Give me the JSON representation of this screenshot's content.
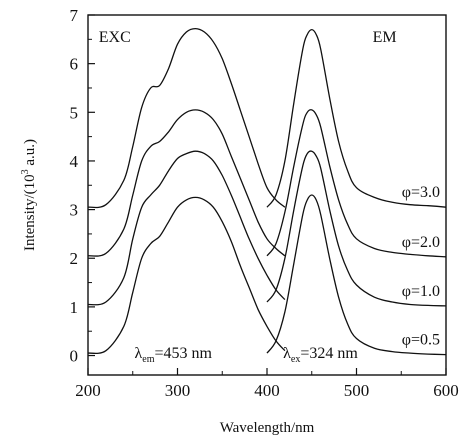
{
  "chart_data": {
    "type": "line",
    "title": "",
    "xlabel": "Wavelength/nm",
    "ylabel": "Intensity/(10",
    "ylabel_sup": "3",
    "ylabel_tail": " a.u.)",
    "xlim": [
      200,
      600
    ],
    "ylim": [
      -0.4,
      7.0
    ],
    "x_ticks": [
      200,
      300,
      400,
      500,
      600
    ],
    "y_ticks": [
      0,
      1,
      2,
      3,
      4,
      5,
      6,
      7
    ],
    "grid": false,
    "panel_labels": {
      "excitation": "EXC",
      "emission": "EM"
    },
    "annotations": {
      "em_symbol": "λ",
      "em_sub": "em",
      "em_value": "=453 nm",
      "ex_symbol": "λ",
      "ex_sub": "ex",
      "ex_value": "=324 nm"
    },
    "series": [
      {
        "name": "φ=3.0",
        "excitation": {
          "x": [
            200,
            220,
            240,
            250,
            260,
            270,
            280,
            290,
            300,
            310,
            320,
            330,
            340,
            350,
            360,
            370,
            380,
            390,
            400,
            410,
            420
          ],
          "y": [
            3.05,
            3.1,
            3.6,
            4.3,
            5.1,
            5.5,
            5.55,
            5.9,
            6.4,
            6.65,
            6.72,
            6.65,
            6.45,
            6.1,
            5.6,
            5.05,
            4.5,
            3.95,
            3.45,
            3.2,
            3.05
          ]
        },
        "emission": {
          "x": [
            400,
            410,
            420,
            430,
            440,
            445,
            450,
            455,
            460,
            470,
            480,
            490,
            500,
            520,
            540,
            560,
            580,
            600
          ],
          "y": [
            3.05,
            3.3,
            4.0,
            5.2,
            6.3,
            6.6,
            6.7,
            6.6,
            6.3,
            5.3,
            4.4,
            3.8,
            3.45,
            3.25,
            3.15,
            3.1,
            3.08,
            3.05
          ]
        }
      },
      {
        "name": "φ=2.0",
        "excitation": {
          "x": [
            200,
            220,
            240,
            250,
            260,
            270,
            280,
            290,
            300,
            310,
            320,
            330,
            340,
            350,
            360,
            370,
            380,
            390,
            400,
            410,
            420
          ],
          "y": [
            2.05,
            2.1,
            2.6,
            3.3,
            4.0,
            4.3,
            4.4,
            4.6,
            4.85,
            5.0,
            5.05,
            5.0,
            4.85,
            4.55,
            4.1,
            3.65,
            3.2,
            2.75,
            2.4,
            2.2,
            2.05
          ]
        },
        "emission": {
          "x": [
            400,
            410,
            420,
            430,
            440,
            445,
            450,
            455,
            460,
            470,
            480,
            490,
            500,
            520,
            540,
            560,
            580,
            600
          ],
          "y": [
            2.05,
            2.3,
            2.95,
            3.9,
            4.75,
            5.0,
            5.05,
            4.95,
            4.7,
            3.9,
            3.2,
            2.7,
            2.4,
            2.2,
            2.12,
            2.08,
            2.05,
            2.03
          ]
        }
      },
      {
        "name": "φ=1.0",
        "excitation": {
          "x": [
            200,
            220,
            240,
            250,
            260,
            270,
            280,
            290,
            300,
            310,
            320,
            330,
            340,
            350,
            360,
            370,
            380,
            390,
            400,
            410,
            420
          ],
          "y": [
            1.05,
            1.1,
            1.6,
            2.4,
            3.05,
            3.3,
            3.5,
            3.8,
            4.05,
            4.15,
            4.2,
            4.15,
            4.0,
            3.7,
            3.3,
            2.85,
            2.4,
            2.0,
            1.65,
            1.35,
            1.15
          ]
        },
        "emission": {
          "x": [
            400,
            410,
            420,
            430,
            440,
            445,
            450,
            455,
            460,
            470,
            480,
            490,
            500,
            520,
            540,
            560,
            580,
            600
          ],
          "y": [
            1.1,
            1.35,
            2.0,
            3.0,
            3.9,
            4.15,
            4.2,
            4.1,
            3.85,
            3.0,
            2.25,
            1.75,
            1.45,
            1.2,
            1.1,
            1.05,
            1.03,
            1.02
          ]
        }
      },
      {
        "name": "φ=0.5",
        "excitation": {
          "x": [
            200,
            220,
            240,
            250,
            260,
            270,
            280,
            290,
            300,
            310,
            320,
            330,
            340,
            350,
            360,
            370,
            380,
            390,
            400,
            410,
            420
          ],
          "y": [
            0.05,
            0.1,
            0.6,
            1.3,
            2.0,
            2.3,
            2.45,
            2.75,
            3.05,
            3.2,
            3.25,
            3.2,
            3.05,
            2.75,
            2.35,
            1.85,
            1.4,
            0.95,
            0.6,
            0.3,
            0.1
          ]
        },
        "emission": {
          "x": [
            400,
            410,
            420,
            430,
            440,
            445,
            450,
            455,
            460,
            470,
            480,
            490,
            500,
            520,
            540,
            560,
            580,
            600
          ],
          "y": [
            0.05,
            0.3,
            0.9,
            1.9,
            2.9,
            3.2,
            3.3,
            3.2,
            2.9,
            2.0,
            1.2,
            0.65,
            0.35,
            0.15,
            0.08,
            0.05,
            0.03,
            0.02
          ]
        }
      }
    ]
  }
}
